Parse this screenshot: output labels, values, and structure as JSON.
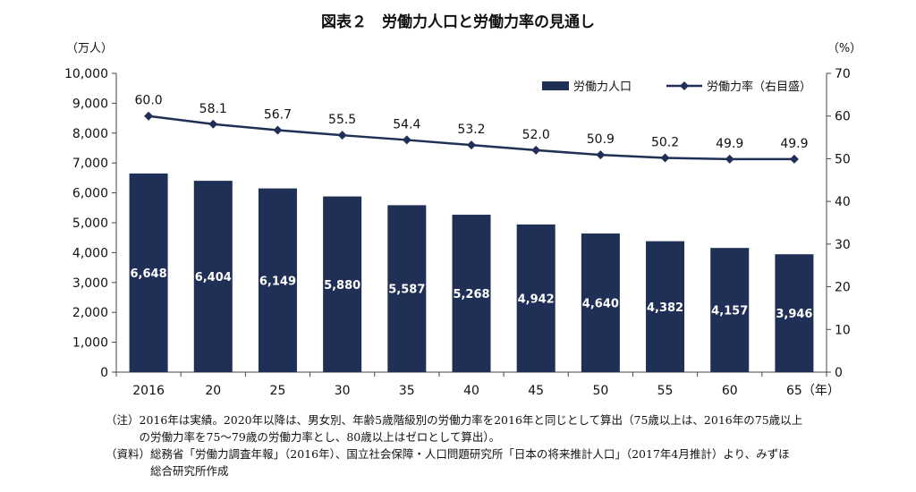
{
  "chart_data": {
    "type": "bar",
    "title": "図表２　労働力人口と労働力率の見通し",
    "categories": [
      "2016",
      "20",
      "25",
      "30",
      "35",
      "40",
      "45",
      "50",
      "55",
      "60",
      "65"
    ],
    "x_unit": "（年）",
    "series": [
      {
        "name": "労働力人口",
        "kind": "bar",
        "axis": "left",
        "values": [
          6648,
          6404,
          6149,
          5880,
          5587,
          5268,
          4942,
          4640,
          4382,
          4157,
          3946
        ],
        "labels": [
          "6,648",
          "6,404",
          "6,149",
          "5,880",
          "5,587",
          "5,268",
          "4,942",
          "4,640",
          "4,382",
          "4,157",
          "3,946"
        ]
      },
      {
        "name": "労働力率（右目盛）",
        "kind": "line",
        "axis": "right",
        "values": [
          60.0,
          58.1,
          56.7,
          55.5,
          54.4,
          53.2,
          52.0,
          50.9,
          50.2,
          49.9,
          49.9
        ],
        "labels": [
          "60.0",
          "58.1",
          "56.7",
          "55.5",
          "54.4",
          "53.2",
          "52.0",
          "50.9",
          "50.2",
          "49.9",
          "49.9"
        ]
      }
    ],
    "y_left": {
      "unit": "（万人）",
      "ylim": [
        0,
        10000
      ],
      "ticks": [
        "0",
        "1,000",
        "2,000",
        "3,000",
        "4,000",
        "5,000",
        "6,000",
        "7,000",
        "8,000",
        "9,000",
        "10,000"
      ]
    },
    "y_right": {
      "unit": "（%）",
      "ylim": [
        0,
        70
      ],
      "ticks": [
        "0",
        "10",
        "20",
        "30",
        "40",
        "50",
        "60",
        "70"
      ]
    },
    "grid": false,
    "legend": "top-right",
    "colors": {
      "bar": "#1f2f56",
      "line": "#1f2f56",
      "bar_label": "#ffffff"
    }
  },
  "notes": [
    {
      "prefix": "（注）",
      "lines": [
        "2016年は実績。2020年以降は、男女別、年齢5歳階級別の労働力率を2016年と同じとして算出（75歳以上は、2016年の75歳以上",
        "の労働力率を75～79歳の労働力率とし、80歳以上はゼロとして算出）。"
      ]
    },
    {
      "prefix": "（資料）",
      "lines": [
        "総務省「労働力調査年報」（2016年）、国立社会保障・人口問題研究所「日本の将来推計人口」（2017年4月推計）より、みずほ",
        "総合研究所作成"
      ]
    }
  ]
}
